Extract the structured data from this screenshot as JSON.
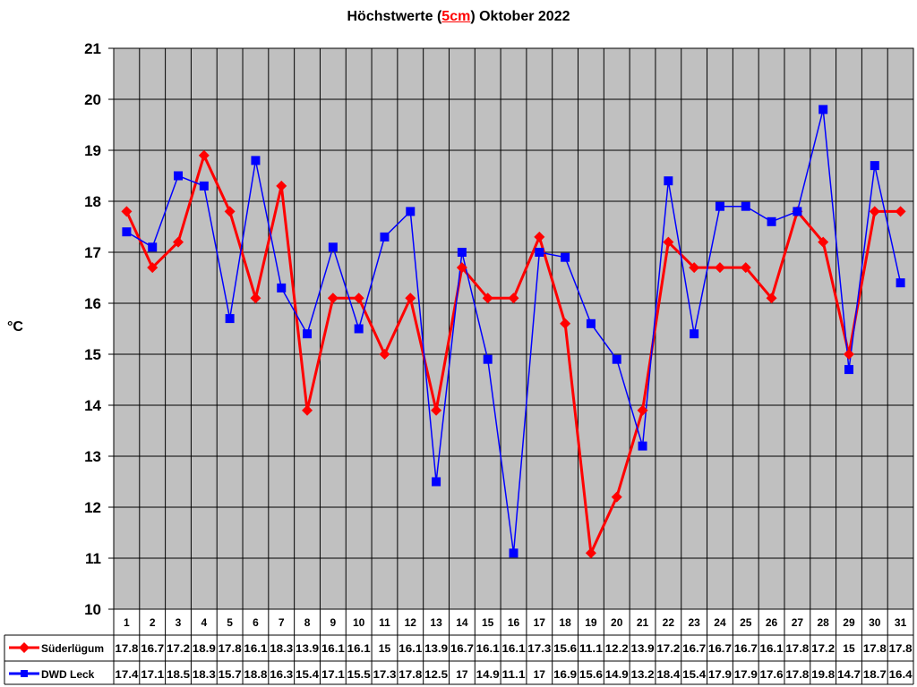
{
  "chart_data": {
    "type": "line",
    "title_parts": [
      "Höchstwerte (",
      "5cm",
      ") Oktober 2022"
    ],
    "ylabel": "°C",
    "ylim": [
      10,
      21
    ],
    "yticks": [
      10,
      11,
      12,
      13,
      14,
      15,
      16,
      17,
      18,
      19,
      20,
      21
    ],
    "grid": true,
    "legend": "data-table-left",
    "categories": [
      "1",
      "2",
      "3",
      "4",
      "5",
      "6",
      "7",
      "8",
      "9",
      "10",
      "11",
      "12",
      "13",
      "14",
      "15",
      "16",
      "17",
      "18",
      "19",
      "20",
      "21",
      "22",
      "23",
      "24",
      "25",
      "26",
      "27",
      "28",
      "29",
      "30",
      "31"
    ],
    "series": [
      {
        "name": "Süderlügum",
        "color": "#ff0000",
        "marker": "diamond",
        "values": [
          17.8,
          16.7,
          17.2,
          18.9,
          17.8,
          16.1,
          18.3,
          13.9,
          16.1,
          16.1,
          15,
          16.1,
          13.9,
          16.7,
          16.1,
          16.1,
          17.3,
          15.6,
          11.1,
          12.2,
          13.9,
          17.2,
          16.7,
          16.7,
          16.7,
          16.1,
          17.8,
          17.2,
          15,
          17.8,
          17.8
        ]
      },
      {
        "name": "DWD Leck",
        "color": "#0000ff",
        "marker": "square",
        "values": [
          17.4,
          17.1,
          18.5,
          18.3,
          15.7,
          18.8,
          16.3,
          15.4,
          17.1,
          15.5,
          17.3,
          17.8,
          12.5,
          17,
          14.9,
          11.1,
          17,
          16.9,
          15.6,
          14.9,
          13.2,
          18.4,
          15.4,
          17.9,
          17.9,
          17.6,
          17.8,
          19.8,
          14.7,
          18.7,
          16.4
        ]
      }
    ],
    "plot_background": "#c0c0c0"
  }
}
